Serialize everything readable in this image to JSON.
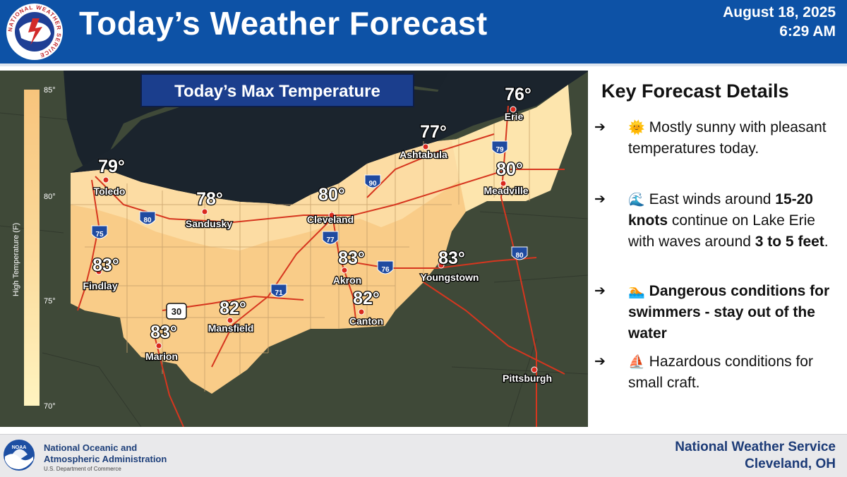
{
  "header": {
    "title": "Today’s Weather Forecast",
    "date": "August 18, 2025",
    "time": "6:29 AM",
    "logo_text": "NATIONAL WEATHER SERVICE"
  },
  "map": {
    "title": "Today’s Max Temperature",
    "legend": {
      "label": "High Temperature (F)",
      "ticks": [
        "85°",
        "80°",
        "75°",
        "70°"
      ]
    },
    "cities": [
      {
        "name": "Erie",
        "temp": "76°"
      },
      {
        "name": "Ashtabula",
        "temp": "77°"
      },
      {
        "name": "Meadville",
        "temp": "80°"
      },
      {
        "name": "Toledo",
        "temp": "79°"
      },
      {
        "name": "Sandusky",
        "temp": "78°"
      },
      {
        "name": "Cleveland",
        "temp": "80°"
      },
      {
        "name": "Findlay",
        "temp": "83°"
      },
      {
        "name": "Akron",
        "temp": "83°"
      },
      {
        "name": "Youngstown",
        "temp": "83°"
      },
      {
        "name": "Canton",
        "temp": "82°"
      },
      {
        "name": "Mansfield",
        "temp": "82°"
      },
      {
        "name": "Marion",
        "temp": "83°"
      },
      {
        "name": "Pittsburgh",
        "temp": ""
      }
    ],
    "highways": {
      "interstates": [
        "79",
        "90",
        "80",
        "77",
        "75",
        "76",
        "71",
        "80"
      ],
      "us_route": "30"
    }
  },
  "details": {
    "title": "Key Forecast Details",
    "items": [
      {
        "icon": "sun-icon",
        "emoji": "🌞",
        "parts": [
          {
            "text": "Mostly sunny with pleasant temperatures today.",
            "bold": false
          }
        ]
      },
      {
        "icon": "wave-icon",
        "emoji": "🌊",
        "parts": [
          {
            "text": "East winds around ",
            "bold": false
          },
          {
            "text": "15-20 knots",
            "bold": true
          },
          {
            "text": " continue on Lake Erie with waves around ",
            "bold": false
          },
          {
            "text": "3 to 5 feet",
            "bold": true
          },
          {
            "text": ".",
            "bold": false
          }
        ]
      },
      {
        "icon": "swimmer-icon",
        "emoji": "🏊",
        "parts": [
          {
            "text": "Dangerous conditions for swimmers - stay out of the water",
            "bold": true
          }
        ]
      },
      {
        "icon": "sailboat-icon",
        "emoji": "⛵",
        "parts": [
          {
            "text": "Hazardous conditions for small craft.",
            "bold": false
          }
        ]
      }
    ],
    "arrow": "➔"
  },
  "footer": {
    "noaa_line1": "National Oceanic and",
    "noaa_line2": "Atmospheric Administration",
    "noaa_line3": "U.S. Department of Commerce",
    "noaa_logo_text": "NOAA",
    "nws_line1": "National Weather Service",
    "nws_line2": "Cleveland, OH"
  },
  "colors": {
    "header_blue": "#0d52a6",
    "lake": "#1c2630",
    "forecast_fill_warm": "#f9cf8d",
    "forecast_fill_cool": "#fde4a9",
    "legend_low": "#fff2bb",
    "legend_high": "#f8c57a"
  }
}
